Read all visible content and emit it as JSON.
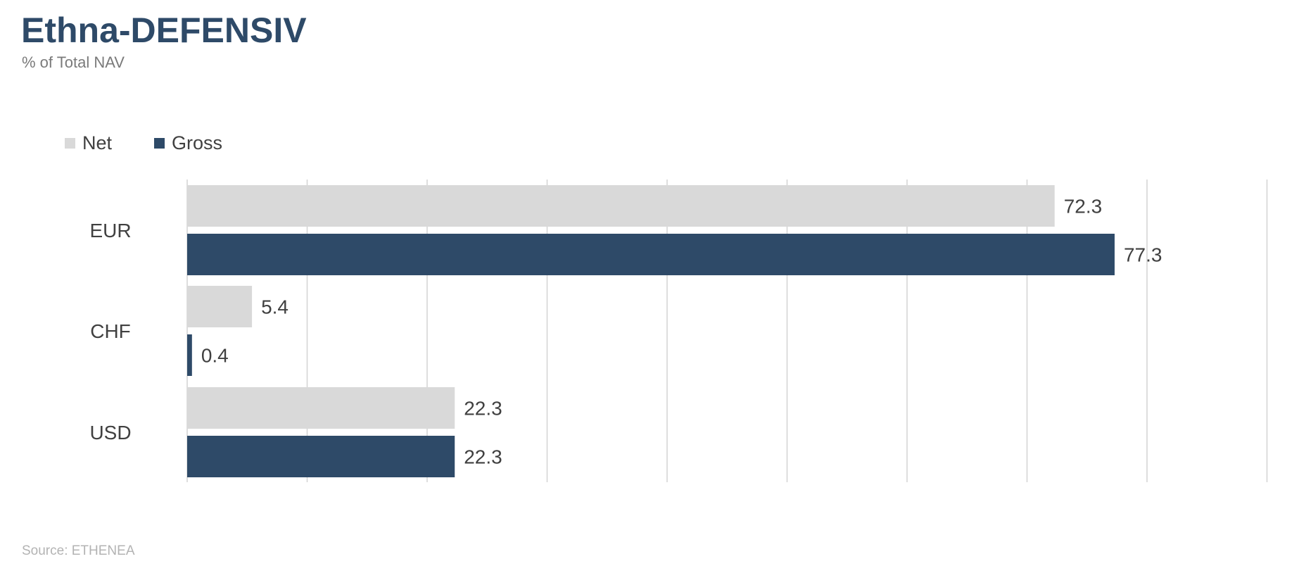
{
  "title": "Ethna-DEFENSIV",
  "subtitle": "% of Total NAV",
  "source": "Source: ETHENEA",
  "colors": {
    "net": "#d9d9d9",
    "gross": "#2e4a68",
    "grid": "#d3d3d3",
    "text": "#404040"
  },
  "chart_data": {
    "type": "bar",
    "orientation": "horizontal",
    "categories": [
      "EUR",
      "CHF",
      "USD"
    ],
    "series": [
      {
        "name": "Net",
        "values": [
          72.3,
          5.4,
          22.3
        ]
      },
      {
        "name": "Gross",
        "values": [
          77.3,
          0.4,
          22.3
        ]
      }
    ],
    "data_labels": [
      [
        "72.3",
        "5.4",
        "22.3"
      ],
      [
        "77.3",
        "0.4",
        "22.3"
      ]
    ],
    "xlim": [
      0,
      90
    ],
    "gridlines_every": 10,
    "grid": true,
    "legend_position": "top-left"
  }
}
